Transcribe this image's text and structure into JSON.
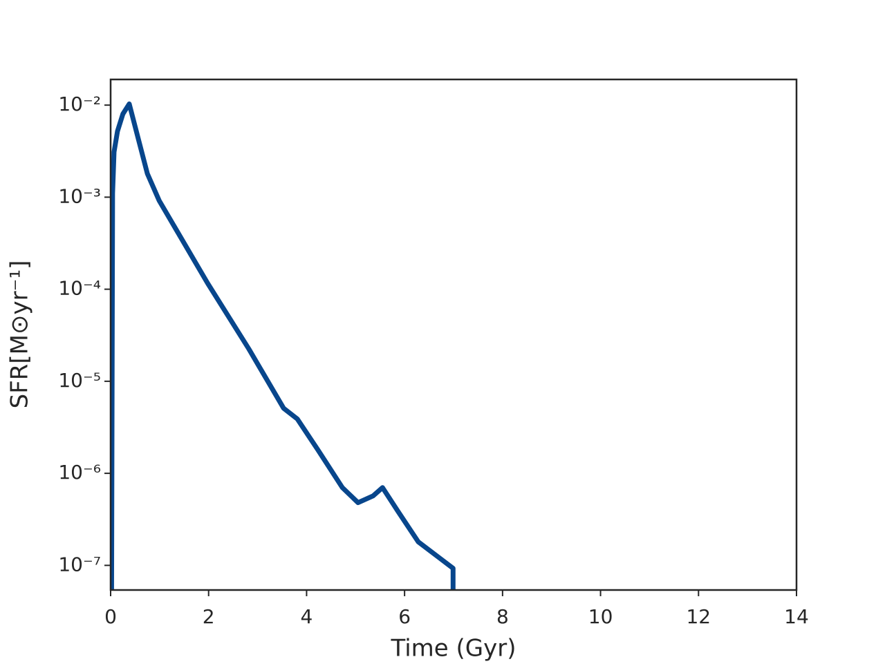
{
  "chart_data": {
    "type": "line",
    "xlabel": "Time (Gyr)",
    "ylabel": "SFR[M⊙yr⁻¹]",
    "log_y": true,
    "color": "#08468c",
    "x": [
      0.02,
      0.04,
      0.07,
      0.14,
      0.25,
      0.38,
      0.56,
      0.75,
      0.99,
      1.98,
      2.82,
      3.53,
      3.81,
      4.23,
      4.73,
      5.05,
      5.36,
      5.55,
      5.86,
      6.28,
      6.99,
      6.99
    ],
    "values": [
      5.5e-08,
      0.0011,
      0.0031,
      0.0052,
      0.008,
      0.0103,
      0.0044,
      0.0018,
      0.00092,
      0.000116,
      2.25e-05,
      5.1e-06,
      3.9e-06,
      1.8e-06,
      7e-07,
      4.8e-07,
      5.7e-07,
      7e-07,
      3.9e-07,
      1.8e-07,
      9.3e-08,
      5.5e-08
    ],
    "xlim": [
      0,
      14
    ],
    "xticks": [
      0,
      2,
      4,
      6,
      8,
      10,
      12,
      14
    ],
    "ylim": [
      5.4e-08,
      0.019
    ],
    "yticks": [
      {
        "value": 1e-07,
        "label": "10⁻⁷"
      },
      {
        "value": 1e-06,
        "label": "10⁻⁶"
      },
      {
        "value": 1e-05,
        "label": "10⁻⁵"
      },
      {
        "value": 0.0001,
        "label": "10⁻⁴"
      },
      {
        "value": 0.001,
        "label": "10⁻³"
      },
      {
        "value": 0.01,
        "label": "10⁻²"
      }
    ]
  }
}
